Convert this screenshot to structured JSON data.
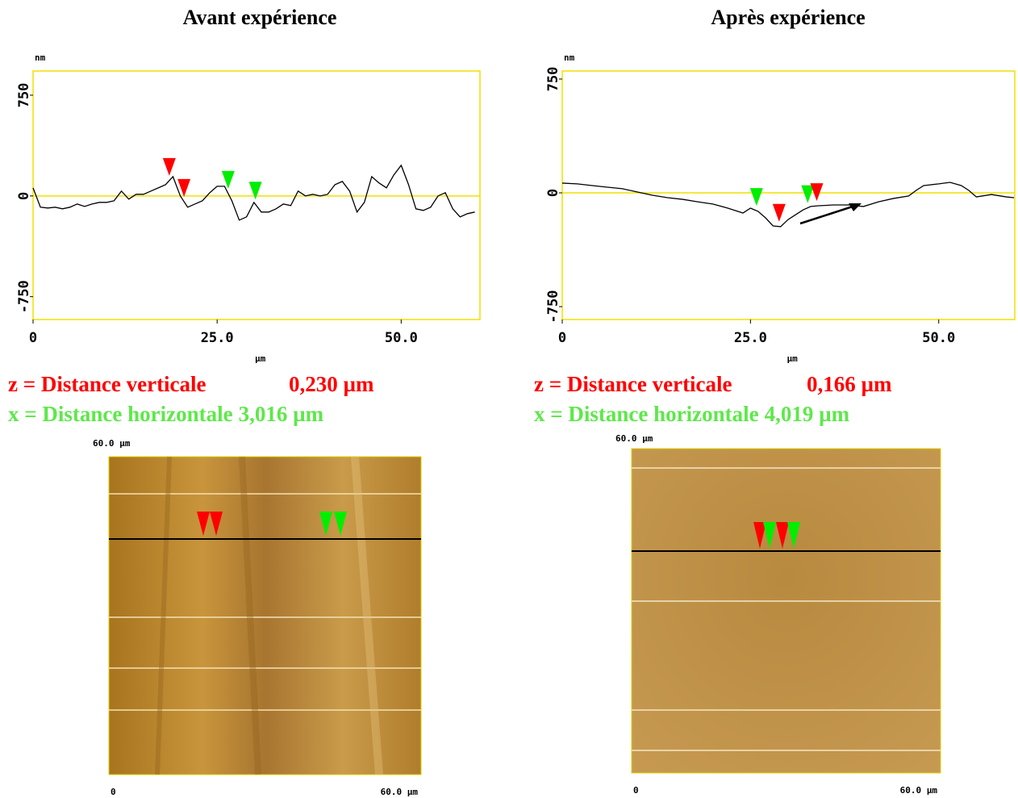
{
  "chart_data": [
    {
      "type": "line",
      "title": "Avant expérience",
      "ylabel": "nm",
      "xlabel": "µm",
      "x": [
        0,
        1,
        2,
        3,
        4,
        5,
        6,
        7,
        8,
        9,
        10,
        11,
        12,
        13,
        14,
        15,
        16,
        17,
        18,
        19,
        20,
        21,
        22,
        23,
        24,
        25,
        26,
        27,
        28,
        29,
        30,
        31,
        32,
        33,
        34,
        35,
        36,
        37,
        38,
        39,
        40,
        41,
        42,
        43,
        44,
        45,
        46,
        47,
        48,
        49,
        50,
        51,
        52,
        53,
        54,
        55,
        56,
        57,
        58,
        59,
        60
      ],
      "series": [
        {
          "color": "#000000",
          "values": [
            60,
            -84,
            -90,
            -84,
            -96,
            -84,
            -60,
            -78,
            -60,
            -48,
            -48,
            -36,
            36,
            -24,
            12,
            12,
            36,
            60,
            84,
            144,
            0,
            -84,
            -60,
            -36,
            24,
            72,
            72,
            -36,
            -180,
            -156,
            -48,
            -120,
            -120,
            -96,
            -60,
            -72,
            36,
            0,
            12,
            0,
            12,
            84,
            108,
            36,
            -120,
            -48,
            144,
            96,
            60,
            156,
            228,
            84,
            -96,
            -108,
            -84,
            0,
            24,
            -96,
            -156,
            -132,
            -120
          ]
        }
      ],
      "xlim": [
        0,
        60.7
      ],
      "ylim": [
        -920,
        930
      ],
      "xticks": [
        0,
        {
          "value": 25,
          "label": "25.0"
        },
        {
          "value": 50,
          "label": "50.0"
        }
      ],
      "yticks": [
        -750,
        0,
        750
      ],
      "markers": [
        {
          "x": 18.5,
          "color": "#ff0000"
        },
        {
          "x": 20.5,
          "color": "#ff0000"
        },
        {
          "x": 26.5,
          "color": "#00ee00"
        },
        {
          "x": 30.2,
          "color": "#00ee00"
        }
      ],
      "annotations": {
        "z_label": "z = Distance verticale",
        "z_value": "0,230 µm",
        "x_label": "x = Distance horizontale",
        "x_value": "3,016 µm"
      },
      "image": {
        "top_label": "60.0 µm",
        "x_start": "0",
        "x_end": "60.0 µm"
      }
    },
    {
      "type": "line",
      "title": "Après expérience",
      "ylabel": "nm",
      "xlabel": "µm",
      "x": [
        0,
        2,
        4,
        6,
        8,
        10,
        12,
        14,
        16,
        18,
        20,
        22,
        24,
        25,
        26,
        27,
        28,
        29,
        30,
        31,
        32,
        33,
        34,
        36,
        38,
        40,
        42,
        44,
        46,
        47,
        48,
        50,
        51.5,
        53,
        54,
        55,
        57,
        59,
        60
      ],
      "series": [
        {
          "color": "#000000",
          "values": [
            64,
            59,
            48,
            37,
            27,
            5,
            -16,
            -32,
            -43,
            -59,
            -74,
            -101,
            -133,
            -101,
            -122,
            -165,
            -218,
            -223,
            -176,
            -144,
            -112,
            -90,
            -85,
            -80,
            -80,
            -90,
            -59,
            -37,
            -21,
            16,
            48,
            59,
            69,
            48,
            16,
            -27,
            -11,
            -27,
            -32
          ]
        }
      ],
      "xlim": [
        0,
        60.1
      ],
      "ylim": [
        -835,
        803
      ],
      "xticks": [
        0,
        {
          "value": 25,
          "label": "25.0"
        },
        {
          "value": 50,
          "label": "50.0"
        }
      ],
      "yticks": [
        -750,
        0,
        750
      ],
      "markers": [
        {
          "x": 25.8,
          "color": "#00ee00"
        },
        {
          "x": 28.8,
          "color": "#ff0000"
        },
        {
          "x": 32.6,
          "color": "#00ee00"
        },
        {
          "x": 33.8,
          "color": "#ff0000"
        }
      ],
      "annotations": {
        "z_label": "z = Distance verticale",
        "z_value": "0,166 µm",
        "x_label": "x = Distance horizontale",
        "x_value": "4,019 µm"
      },
      "image": {
        "top_label": "60.0 µm",
        "x_start": "0",
        "x_end": "60.0 µm"
      }
    }
  ]
}
